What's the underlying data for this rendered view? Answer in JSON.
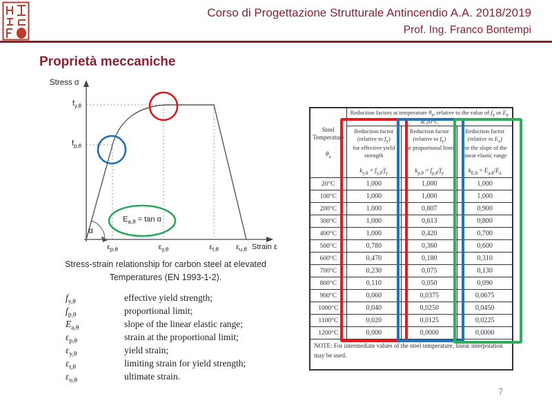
{
  "header": {
    "course_title": "Corso di Progettazione Strutturale Antincendio A.A. 2018/2019",
    "professor": "Prof. Ing. Franco Bontempi",
    "accent_color": "#8e1b24",
    "seal_color": "#bf3a2b"
  },
  "slide": {
    "title": "Proprietà meccaniche",
    "page_number": "7"
  },
  "diagram": {
    "stress_axis_label": "Stress σ",
    "strain_axis_label": "Strain ε",
    "fy_label": "f_[y,θ]",
    "fp_label": "f_[p,θ]",
    "alpha_label": "α",
    "modulus_formula": "E_[a,θ] = tan α",
    "strain_ticks": [
      "ε_[p,θ]",
      "ε_[y,θ]",
      "ε_[t,θ]",
      "ε_[u,θ]"
    ],
    "caption_line1": "Stress-strain relationship for carbon steel at elevated",
    "caption_line2": "Temperatures (EN 1993-1-2).",
    "highlight_colors": {
      "red": "#e01319",
      "blue": "#1f6cb8",
      "green": "#27a85a"
    }
  },
  "symbols": [
    {
      "sym": "f_[y,θ]",
      "desc": "effective yield strength;"
    },
    {
      "sym": "f_[p,θ]",
      "desc": "proportional limit;"
    },
    {
      "sym": "E_[a,θ]",
      "desc": "slope of the linear elastic range;"
    },
    {
      "sym": "ε_[p,θ]",
      "desc": "strain at the proportional limit;"
    },
    {
      "sym": "ε_[y,θ]",
      "desc": "yield strain;"
    },
    {
      "sym": "ε_[t,θ]",
      "desc": "limiting strain for yield strength;"
    },
    {
      "sym": "ε_[u,θ]",
      "desc": "ultimate strain."
    }
  ],
  "table": {
    "span_header_line1": "Reduction factors at temperature θ_[a], relative to the value of f_[y] or E_[a]",
    "span_header_line2": "at 20°C",
    "temp_header": {
      "line1": "Steel",
      "line2": "Temperature",
      "symbol": "θ_[a]"
    },
    "columns": [
      {
        "desc": "Reduction factor\n(relative to f_[y])\nfor effective yield\nstrength",
        "formula": "k_[y,θ] = f_[y,θ]/f_[y]"
      },
      {
        "desc": "Reduction factor\n(relative to f_[y])\nfor proportional limit",
        "formula": "k_[p,θ] = f_[p,θ]/f_[y]"
      },
      {
        "desc": "Reduction factor\n(relative to E_[a])\nfor the slope of the\nlinear elastic range",
        "formula": "k_[E,θ] = E_[a,θ]/E_[a]"
      }
    ],
    "rows": [
      [
        "20°C",
        "1,000",
        "1,000",
        "1,000"
      ],
      [
        "100°C",
        "1,000",
        "1,000",
        "1,000"
      ],
      [
        "200°C",
        "1,000",
        "0,807",
        "0,900"
      ],
      [
        "300°C",
        "1,000",
        "0,613",
        "0,800"
      ],
      [
        "400°C",
        "1,000",
        "0,420",
        "0,700"
      ],
      [
        "500°C",
        "0,780",
        "0,360",
        "0,600"
      ],
      [
        "600°C",
        "0,470",
        "0,180",
        "0,310"
      ],
      [
        "700°C",
        "0,230",
        "0,075",
        "0,130"
      ],
      [
        "800°C",
        "0,110",
        "0,050",
        "0,090"
      ],
      [
        "900°C",
        "0,060",
        "0,0375",
        "0,0675"
      ],
      [
        "1000°C",
        "0,040",
        "0,0250",
        "0,0450"
      ],
      [
        "1100°C",
        "0,020",
        "0,0125",
        "0,0225"
      ],
      [
        "1200°C",
        "0,000",
        "0,0000",
        "0,0000"
      ]
    ],
    "note": "NOTE:  For intermediate values of the steel temperature, linear interpolation may be used.",
    "highlight_colors": {
      "red": "#e8191f",
      "blue": "#2273ba",
      "green": "#2fae5b"
    }
  }
}
